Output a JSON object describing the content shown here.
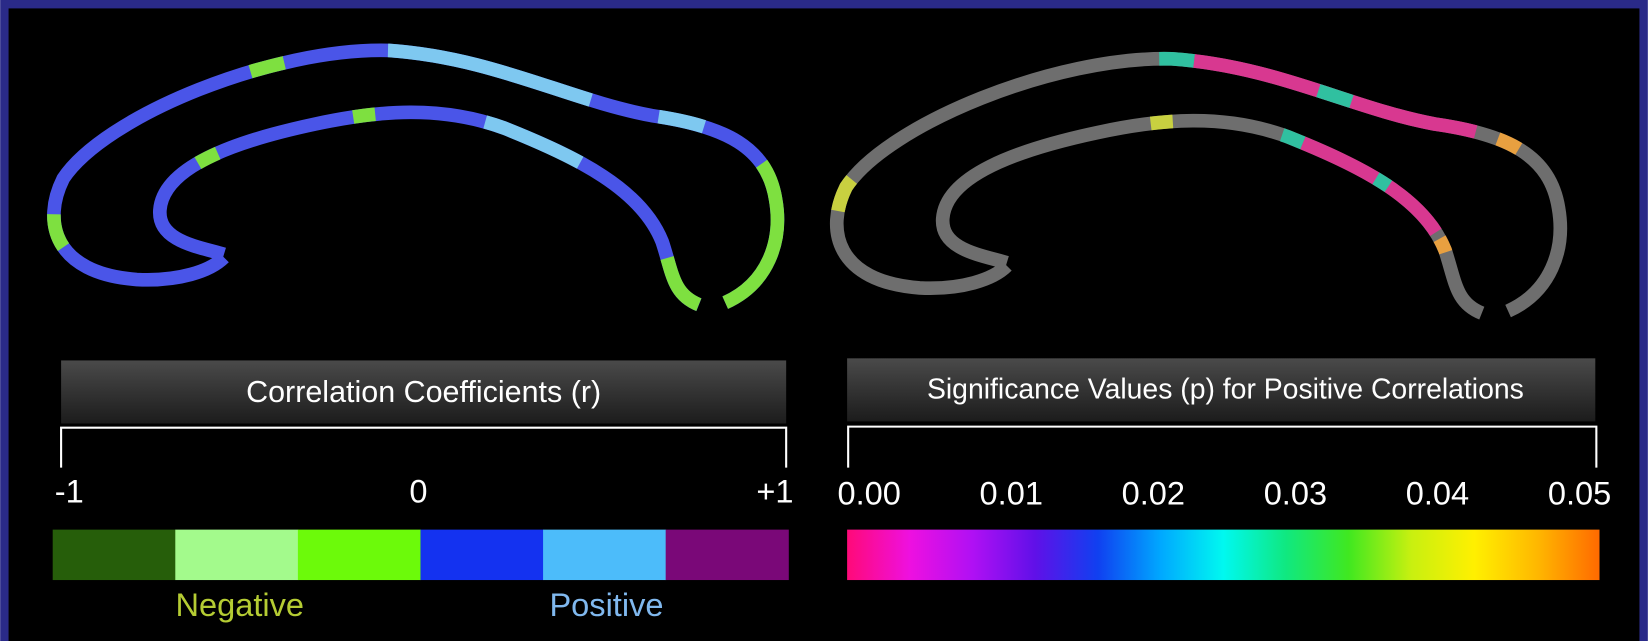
{
  "left_panel": {
    "title": "Correlation Coefficients (r)",
    "scale_labels": [
      "-1",
      "0",
      "+1"
    ],
    "group_labels": [
      "Negative",
      "Positive"
    ],
    "group_colors": [
      "#b5cc33",
      "#80b8ee"
    ],
    "swatches": [
      "#265e0a",
      "#a3fa8c",
      "#6cfa0a",
      "#1432f0",
      "#4cbcfa",
      "#7a0878"
    ]
  },
  "right_panel": {
    "title": "Significance Values (p) for Positive Correlations",
    "scale_labels": [
      "0.00",
      "0.01",
      "0.02",
      "0.03",
      "0.04",
      "0.05"
    ],
    "gradient": [
      "#ff0a78",
      "#ee10e0",
      "#b010f4",
      "#6010e8",
      "#1040f0",
      "#00a8ff",
      "#00f8f0",
      "#10e880",
      "#40e820",
      "#c8f010",
      "#fff000",
      "#ffb800",
      "#ff6a00"
    ]
  }
}
